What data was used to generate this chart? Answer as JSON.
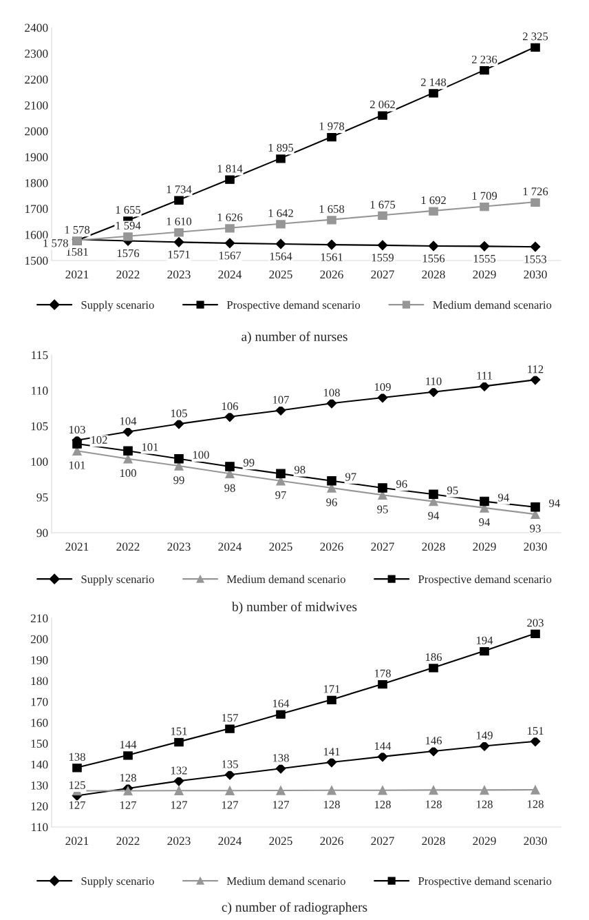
{
  "chart_data": [
    {
      "type": "line",
      "title": "a) number of nurses",
      "categories": [
        "2021",
        "2022",
        "2023",
        "2024",
        "2025",
        "2026",
        "2027",
        "2028",
        "2029",
        "2030"
      ],
      "ylim": [
        1500,
        2400
      ],
      "yticks": [
        1500,
        1600,
        1700,
        1800,
        1900,
        2000,
        2100,
        2200,
        2300,
        2400
      ],
      "legend": "bottom",
      "grid": false,
      "series": [
        {
          "name": "Supply scenario",
          "color": "#000000",
          "marker": "diamond",
          "values": [
            1581,
            1576,
            1571,
            1567,
            1564,
            1561,
            1559,
            1556,
            1555,
            1553
          ],
          "value_labels": [
            "1581",
            "1576",
            "1571",
            "1567",
            "1564",
            "1561",
            "1559",
            "1556",
            "1555",
            "1553"
          ]
        },
        {
          "name": "Prospective demand scenario",
          "color": "#000000",
          "marker": "square",
          "values": [
            1578,
            1655,
            1734,
            1814,
            1895,
            1978,
            2062,
            2148,
            2236,
            2325
          ],
          "value_labels": [
            "1 578",
            "1 655",
            "1 734",
            "1 814",
            "1 895",
            "1 978",
            "2 062",
            "2 148",
            "2 236",
            "2 325"
          ]
        },
        {
          "name": "Medium demand scenario",
          "color": "#969696",
          "marker": "square",
          "values": [
            1578,
            1594,
            1610,
            1626,
            1642,
            1658,
            1675,
            1692,
            1709,
            1726
          ],
          "value_labels": [
            "1 578",
            "1 594",
            "1 610",
            "1 626",
            "1 642",
            "1 658",
            "1 675",
            "1 692",
            "1 709",
            "1 726"
          ]
        }
      ]
    },
    {
      "type": "line",
      "title": "b) number of midwives",
      "categories": [
        "2021",
        "2022",
        "2023",
        "2024",
        "2025",
        "2026",
        "2027",
        "2028",
        "2029",
        "2030"
      ],
      "ylim": [
        90,
        115
      ],
      "yticks": [
        90,
        95,
        100,
        105,
        110,
        115
      ],
      "legend": "bottom",
      "grid": false,
      "series": [
        {
          "name": "Supply scenario",
          "color": "#000000",
          "marker": "diamond",
          "values": [
            103.0,
            104.2,
            105.3,
            106.3,
            107.2,
            108.2,
            109.0,
            109.8,
            110.6,
            111.5
          ],
          "value_labels": [
            "103",
            "104",
            "105",
            "106",
            "107",
            "108",
            "109",
            "110",
            "111",
            "112"
          ]
        },
        {
          "name": "Medium demand scenario",
          "color": "#969696",
          "marker": "triangle",
          "values": [
            101.5,
            100.4,
            99.4,
            98.3,
            97.3,
            96.3,
            95.3,
            94.4,
            93.5,
            92.6
          ],
          "value_labels": [
            "101",
            "100",
            "99",
            "98",
            "97",
            "96",
            "95",
            "94",
            "94",
            "93"
          ]
        },
        {
          "name": "Prospective demand scenario",
          "color": "#000000",
          "marker": "square",
          "values": [
            102.5,
            101.5,
            100.4,
            99.3,
            98.3,
            97.3,
            96.3,
            95.4,
            94.4,
            93.6
          ],
          "value_labels": [
            "102",
            "101",
            "100",
            "99",
            "98",
            "97",
            "96",
            "95",
            "94",
            "94"
          ]
        }
      ]
    },
    {
      "type": "line",
      "title": "c) number of radiographers",
      "categories": [
        "2021",
        "2022",
        "2023",
        "2024",
        "2025",
        "2026",
        "2027",
        "2028",
        "2029",
        "2030"
      ],
      "ylim": [
        110,
        210
      ],
      "yticks": [
        110,
        120,
        130,
        140,
        150,
        160,
        170,
        180,
        190,
        200,
        210
      ],
      "legend": "bottom",
      "grid": false,
      "series": [
        {
          "name": "Supply scenario",
          "color": "#000000",
          "marker": "diamond",
          "values": [
            125,
            128.5,
            132,
            135,
            138,
            141,
            143.7,
            146.3,
            148.8,
            151
          ],
          "value_labels": [
            "125",
            "128",
            "132",
            "135",
            "138",
            "141",
            "144",
            "146",
            "149",
            "151"
          ]
        },
        {
          "name": "Medium demand scenario",
          "color": "#969696",
          "marker": "triangle",
          "values": [
            127.3,
            127.3,
            127.4,
            127.4,
            127.5,
            127.6,
            127.6,
            127.7,
            127.7,
            127.8
          ],
          "value_labels": [
            "127",
            "127",
            "127",
            "127",
            "127",
            "128",
            "128",
            "128",
            "128",
            "128"
          ]
        },
        {
          "name": "Prospective demand scenario",
          "color": "#000000",
          "marker": "square",
          "values": [
            138.5,
            144.4,
            150.8,
            157.2,
            164.1,
            171,
            178.5,
            186.3,
            194.3,
            202.7
          ],
          "value_labels": [
            "138",
            "144",
            "151",
            "157",
            "164",
            "171",
            "178",
            "186",
            "194",
            "203"
          ]
        }
      ]
    }
  ]
}
